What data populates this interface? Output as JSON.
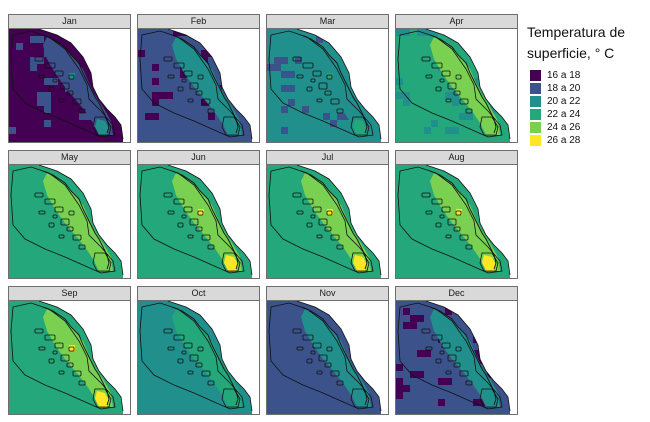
{
  "legend": {
    "title": "Temperatura de superficie, ° C",
    "items": [
      {
        "label": "16 a 18",
        "color": "#440154"
      },
      {
        "label": "18 a 20",
        "color": "#3b528b"
      },
      {
        "label": "20 a 22",
        "color": "#21908c"
      },
      {
        "label": "22 a 24",
        "color": "#24a77a"
      },
      {
        "label": "24 a 26",
        "color": "#7ad151"
      },
      {
        "label": "26 a 28",
        "color": "#fde725"
      }
    ]
  },
  "chart_data": {
    "type": "heatmap",
    "title": "",
    "xlabel": "",
    "ylabel": "",
    "facets": [
      {
        "label": "Jan",
        "base_class": "16 a 18",
        "secondary_class": "18 a 20",
        "warm_class": "18 a 20",
        "hot_class": "20 a 22"
      },
      {
        "label": "Feb",
        "base_class": "18 a 20",
        "secondary_class": "16 a 18",
        "warm_class": "20 a 22",
        "hot_class": "20 a 22"
      },
      {
        "label": "Mar",
        "base_class": "20 a 22",
        "secondary_class": "18 a 20",
        "warm_class": "20 a 22",
        "hot_class": "22 a 24"
      },
      {
        "label": "Apr",
        "base_class": "22 a 24",
        "secondary_class": "20 a 22",
        "warm_class": "24 a 26",
        "hot_class": "24 a 26"
      },
      {
        "label": "May",
        "base_class": "22 a 24",
        "secondary_class": "22 a 24",
        "warm_class": "24 a 26",
        "hot_class": "24 a 26"
      },
      {
        "label": "Jun",
        "base_class": "22 a 24",
        "secondary_class": "22 a 24",
        "warm_class": "24 a 26",
        "hot_class": "26 a 28"
      },
      {
        "label": "Jul",
        "base_class": "22 a 24",
        "secondary_class": "22 a 24",
        "warm_class": "24 a 26",
        "hot_class": "26 a 28"
      },
      {
        "label": "Aug",
        "base_class": "22 a 24",
        "secondary_class": "22 a 24",
        "warm_class": "24 a 26",
        "hot_class": "26 a 28"
      },
      {
        "label": "Sep",
        "base_class": "22 a 24",
        "secondary_class": "22 a 24",
        "warm_class": "24 a 26",
        "hot_class": "26 a 28"
      },
      {
        "label": "Oct",
        "base_class": "20 a 22",
        "secondary_class": "20 a 22",
        "warm_class": "22 a 24",
        "hot_class": "22 a 24"
      },
      {
        "label": "Nov",
        "base_class": "18 a 20",
        "secondary_class": "18 a 20",
        "warm_class": "20 a 22",
        "hot_class": "20 a 22"
      },
      {
        "label": "Dec",
        "base_class": "18 a 20",
        "secondary_class": "16 a 18",
        "warm_class": "20 a 22",
        "hot_class": "20 a 22"
      }
    ]
  }
}
